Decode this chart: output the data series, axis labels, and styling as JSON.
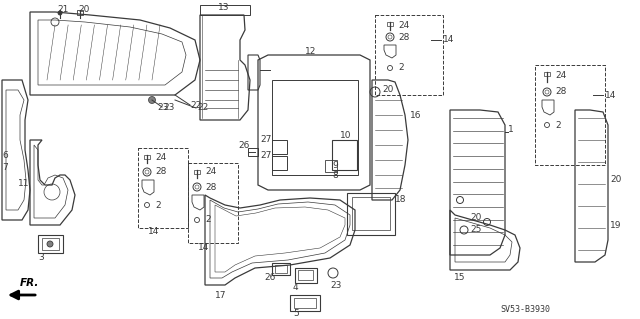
{
  "bg_color": "#ffffff",
  "line_color": "#3a3a3a",
  "diagram_id": "SV53-B3930",
  "figsize": [
    6.4,
    3.19
  ],
  "dpi": 100
}
